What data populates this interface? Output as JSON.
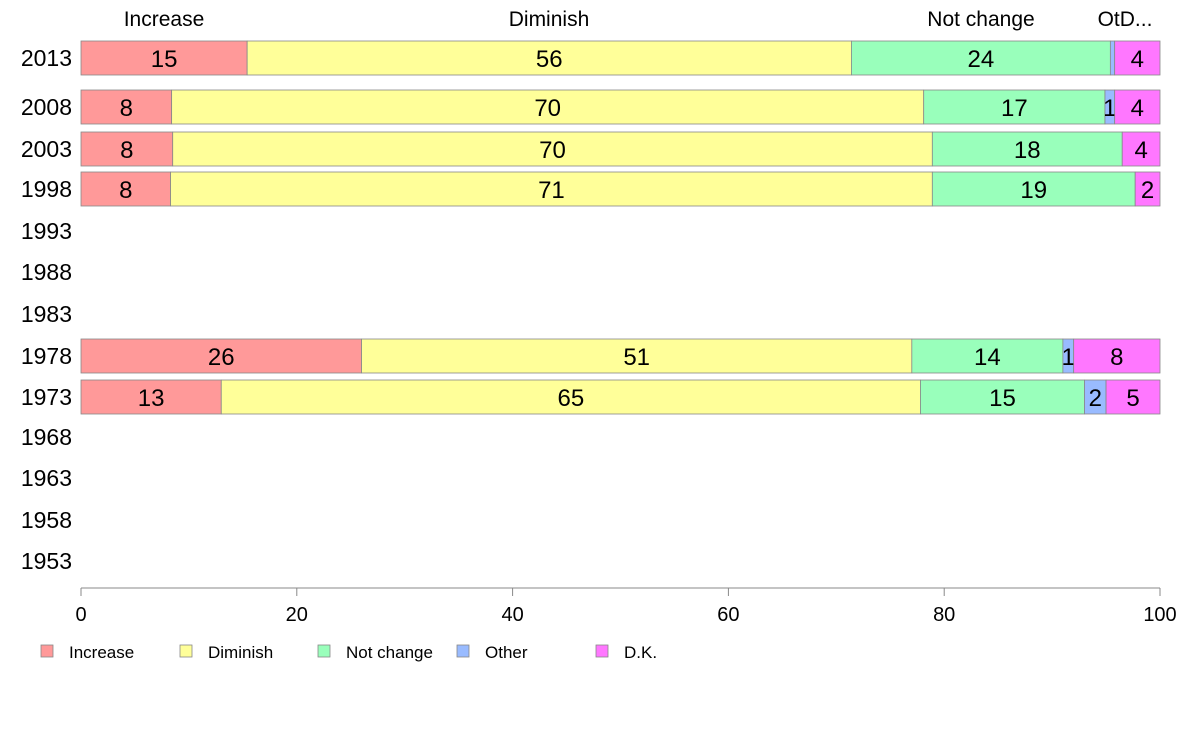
{
  "chart_data": {
    "type": "bar",
    "orientation": "horizontal",
    "stacked": true,
    "xlim": [
      0,
      100
    ],
    "x_ticks": [
      0,
      20,
      40,
      60,
      80,
      100
    ],
    "grid": false,
    "legend_position": "bottom",
    "column_headers": [
      "Increase",
      "Diminish",
      "Not change",
      "OtD..."
    ],
    "categories": [
      "2013",
      "2008",
      "2003",
      "1998",
      "1993",
      "1988",
      "1983",
      "1978",
      "1973",
      "1968",
      "1963",
      "1958",
      "1953"
    ],
    "series": [
      {
        "name": "Increase",
        "color": "#ff9999",
        "values": [
          15.4,
          8.4,
          8.5,
          8.3,
          null,
          null,
          null,
          26,
          13,
          null,
          null,
          null,
          null
        ],
        "labels": [
          "15",
          "8",
          "8",
          "8",
          "",
          "",
          "",
          "26",
          "13",
          "",
          "",
          "",
          ""
        ]
      },
      {
        "name": "Diminish",
        "color": "#ffff99",
        "values": [
          56,
          69.7,
          70.4,
          70.6,
          null,
          null,
          null,
          51,
          64.8,
          null,
          null,
          null,
          null
        ],
        "labels": [
          "56",
          "70",
          "70",
          "71",
          "",
          "",
          "",
          "51",
          "65",
          "",
          "",
          "",
          ""
        ]
      },
      {
        "name": "Not change",
        "color": "#99ffbb",
        "values": [
          24,
          16.8,
          17.6,
          18.8,
          null,
          null,
          null,
          14,
          15.2,
          null,
          null,
          null,
          null
        ],
        "labels": [
          "24",
          "17",
          "18",
          "19",
          "",
          "",
          "",
          "14",
          "15",
          "",
          "",
          "",
          ""
        ]
      },
      {
        "name": "Other",
        "color": "#99bbff",
        "values": [
          0.4,
          0.9,
          0,
          0,
          null,
          null,
          null,
          1,
          2,
          null,
          null,
          null,
          null
        ],
        "labels": [
          "",
          "1",
          "",
          "",
          "",
          "",
          "",
          "1",
          "2",
          "",
          "",
          "",
          ""
        ]
      },
      {
        "name": "D.K.",
        "color": "#ff77ff",
        "values": [
          4.2,
          4.2,
          3.5,
          2.3,
          null,
          null,
          null,
          8,
          5,
          null,
          null,
          null,
          null
        ],
        "labels": [
          "4",
          "4",
          "4",
          "2",
          "",
          "",
          "",
          "8",
          "5",
          "",
          "",
          "",
          ""
        ]
      }
    ]
  }
}
